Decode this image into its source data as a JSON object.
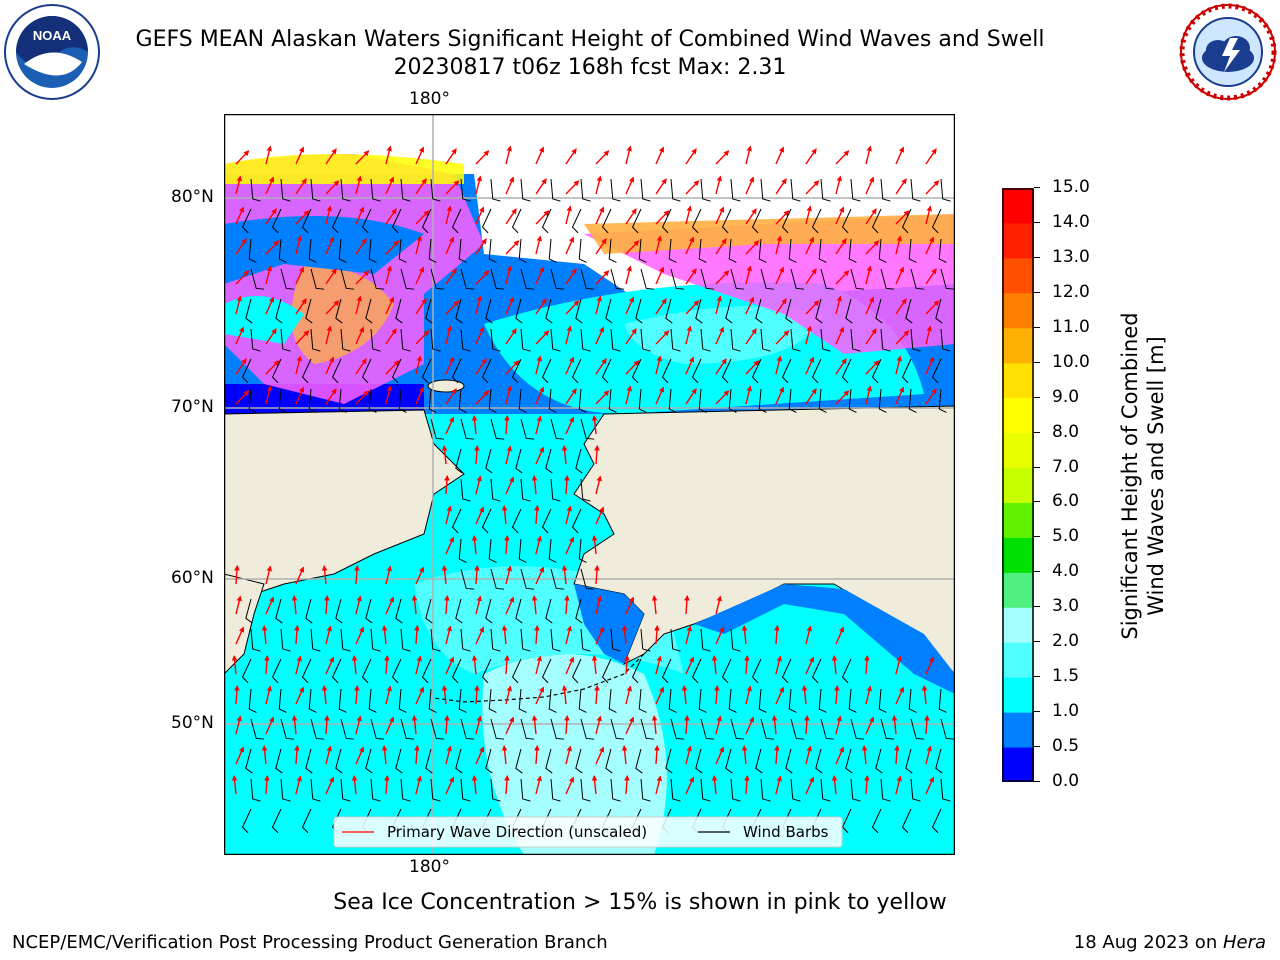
{
  "title": {
    "line1": "GEFS MEAN Alaskan Waters Significant Height of Combined Wind Waves and Swell",
    "line2": "20230817 t06z 168h fcst   Max: 2.31"
  },
  "logos": {
    "noaa_text": "NOAA",
    "noaa_ring": "NATIONAL OCEANIC AND ATMOSPHERIC ADMINISTRATION · U.S. DEPARTMENT OF COMMERCE",
    "nws_ring": "NATIONAL WEATHER SERVICE"
  },
  "map": {
    "lon_label_top": "180°",
    "lon_label_bottom": "180°",
    "lat_labels": [
      "80°N",
      "70°N",
      "60°N",
      "50°N"
    ],
    "colors": {
      "land": "#efecdc",
      "sea_low": "#0000ff",
      "sea_mid": "#007fff",
      "sea_main": "#00ffff",
      "sea_high": "#50ffff",
      "sea_max": "#a6ffff",
      "ice_pink": "#ff60ff",
      "ice_orange": "#ffb040",
      "ice_yellow": "#ffff00",
      "grid": "#b0b0b0",
      "arrow": "#ff0000",
      "barb": "#000000"
    }
  },
  "legend": {
    "wave_direction": "Primary Wave Direction (unscaled)",
    "wind_barbs": "Wind Barbs"
  },
  "colorbar": {
    "title_line1": "Significant Height of Combined",
    "title_line2": "Wind Waves and Swell [m]",
    "ticks": [
      "0.0",
      "0.5",
      "1.0",
      "1.5",
      "2.0",
      "3.0",
      "4.0",
      "5.0",
      "6.0",
      "7.0",
      "8.0",
      "9.0",
      "10.0",
      "11.0",
      "12.0",
      "13.0",
      "14.0",
      "15.0"
    ],
    "colors": [
      "#0000ff",
      "#0080ff",
      "#00ffff",
      "#50ffff",
      "#a6ffff",
      "#50f080",
      "#00e000",
      "#60f000",
      "#c8ff00",
      "#e8ff00",
      "#ffff00",
      "#ffe000",
      "#ffb000",
      "#ff8000",
      "#ff5000",
      "#ff2000",
      "#ff0000"
    ]
  },
  "caption": "Sea Ice Concentration > 15% is shown in pink to yellow",
  "footer": {
    "left": "NCEP/EMC/Verification Post Processing Product Generation Branch",
    "right_prefix": "18 Aug 2023 on ",
    "right_host": "Hera"
  }
}
